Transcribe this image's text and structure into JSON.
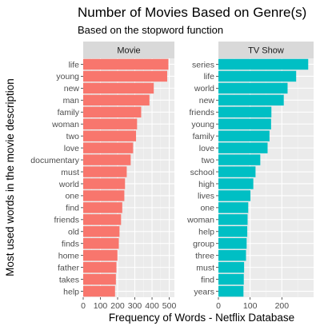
{
  "chart_data": {
    "type": "bar",
    "orientation": "horizontal",
    "title": "Number of Movies Based on Genre(s)",
    "subtitle": "Based on the stopword function",
    "xlabel": "Frequency of Words - Netflix Database",
    "ylabel": "Most used words in the movie description",
    "grid": true,
    "legend": "none",
    "panels": [
      {
        "name": "Movie",
        "color": "#F8766D",
        "xlim": [
          0,
          530
        ],
        "ticks": [
          0,
          100,
          200,
          300,
          400,
          500
        ],
        "tick_labels": [
          "0",
          "100",
          "200",
          "300",
          "400",
          "500"
        ],
        "categories": [
          "life",
          "young",
          "new",
          "man",
          "family",
          "woman",
          "two",
          "love",
          "documentary",
          "must",
          "world",
          "one",
          "find",
          "friends",
          "old",
          "finds",
          "home",
          "father",
          "takes",
          "help"
        ],
        "values": [
          495,
          488,
          410,
          385,
          337,
          313,
          307,
          290,
          276,
          253,
          243,
          239,
          227,
          220,
          211,
          207,
          199,
          193,
          190,
          185
        ]
      },
      {
        "name": "TV Show",
        "color": "#00BFC4",
        "xlim": [
          0,
          300
        ],
        "ticks": [
          0,
          100,
          200
        ],
        "tick_labels": [
          "0",
          "100",
          "200"
        ],
        "categories": [
          "series",
          "life",
          "world",
          "new",
          "friends",
          "young",
          "family",
          "love",
          "two",
          "school",
          "high",
          "lives",
          "one",
          "woman",
          "help",
          "group",
          "three",
          "must",
          "find",
          "years"
        ],
        "values": [
          283,
          245,
          218,
          206,
          167,
          166,
          161,
          155,
          132,
          117,
          110,
          101,
          94,
          92,
          91,
          89,
          87,
          81,
          80,
          79
        ]
      }
    ]
  }
}
